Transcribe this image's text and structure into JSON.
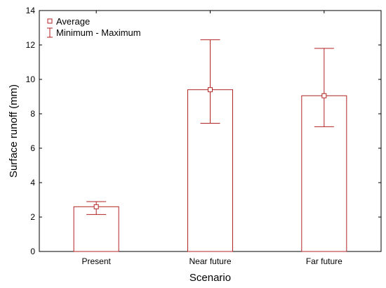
{
  "chart_data": {
    "type": "bar",
    "categories": [
      "Present",
      "Near future",
      "Far future"
    ],
    "xlabel": "Scenario",
    "ylabel": "Surface runoff (mm)",
    "ylim": [
      0,
      14
    ],
    "yticks": [
      0,
      2,
      4,
      6,
      8,
      10,
      12,
      14
    ],
    "grid": false,
    "legend_placement": "top-left",
    "series": [
      {
        "name": "Average",
        "values": [
          2.6,
          9.4,
          9.05
        ]
      },
      {
        "name": "Minimum - Maximum",
        "min": [
          2.15,
          7.45,
          7.25
        ],
        "max": [
          2.9,
          12.3,
          11.8
        ]
      }
    ],
    "colors": {
      "bar_edge": "#b22222",
      "error_bar": "#b22222",
      "axis": "#000000"
    }
  }
}
